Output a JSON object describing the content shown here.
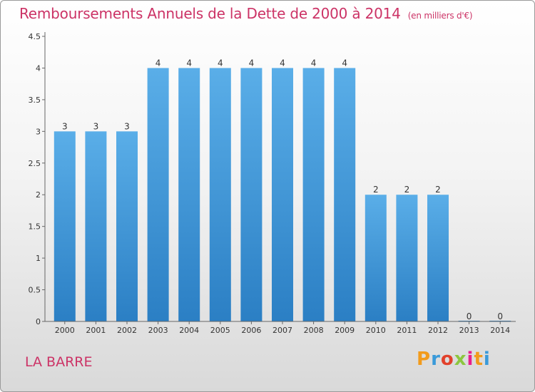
{
  "chart_data": {
    "type": "bar",
    "title": "Remboursements Annuels de la Dette de 2000 à 2014",
    "subtitle": "(en milliers d'€)",
    "categories": [
      "2000",
      "2001",
      "2002",
      "2003",
      "2004",
      "2005",
      "2006",
      "2007",
      "2008",
      "2009",
      "2010",
      "2011",
      "2012",
      "2013",
      "2014"
    ],
    "values": [
      3,
      3,
      3,
      4,
      4,
      4,
      4,
      4,
      4,
      4,
      2,
      2,
      2,
      0,
      0
    ],
    "data_labels": [
      "3",
      "3",
      "3",
      "4",
      "4",
      "4",
      "4",
      "4",
      "4",
      "4",
      "2",
      "2",
      "2",
      "0",
      "0"
    ],
    "yticks": [
      "0",
      "0.5",
      "1",
      "1.5",
      "2",
      "2.5",
      "3",
      "3.5",
      "4",
      "4.5"
    ],
    "ylim": [
      0,
      4.5
    ],
    "xlabel": "",
    "ylabel": "",
    "bar_color_top": "#5aaee8",
    "bar_color_bottom": "#2b7fc4"
  },
  "footer": {
    "commune": "LA BARRE",
    "logo_text": "Proxiti",
    "logo_colors": [
      "#f29b1c",
      "#3a9ad9",
      "#e2412b",
      "#8cc63f",
      "#e91e8c",
      "#f29b1c",
      "#3a9ad9"
    ]
  }
}
